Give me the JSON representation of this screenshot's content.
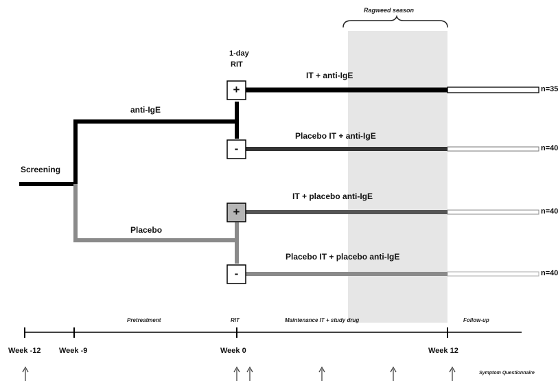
{
  "labels": {
    "screening": "Screening",
    "anti_ige": "anti-IgE",
    "placebo": "Placebo",
    "one_day_rit_line1": "1-day",
    "one_day_rit_line2": "RIT",
    "pollen_season": "Ragweed season"
  },
  "arms": [
    {
      "label": "IT + anti-IgE",
      "symbol": "+",
      "n": "n=35",
      "color": "#000000",
      "box": "#ffffff"
    },
    {
      "label": "Placebo IT + anti-IgE",
      "symbol": "-",
      "n": "n=40",
      "color": "#333333",
      "box": "#ffffff"
    },
    {
      "label": "IT + placebo anti-IgE",
      "symbol": "+",
      "n": "n=40",
      "color": "#555555",
      "box": "#b5b5b5"
    },
    {
      "label": "Placebo IT + placebo anti-IgE",
      "symbol": "-",
      "n": "n=40",
      "color": "#8a8a8a",
      "box": "#ffffff"
    }
  ],
  "timeline": {
    "phases": [
      "Pretreatment",
      "RIT",
      "Maintenance IT + study drug",
      "Follow-up"
    ],
    "weeks": [
      "Week -12",
      "Week -9",
      "Week 0",
      "Week 12"
    ],
    "note": "Symptom Questionnaire"
  },
  "colors": {
    "shade": "#e6e6e6",
    "anti_ige_branch": "#000000",
    "placebo_branch": "#8a8a8a"
  }
}
